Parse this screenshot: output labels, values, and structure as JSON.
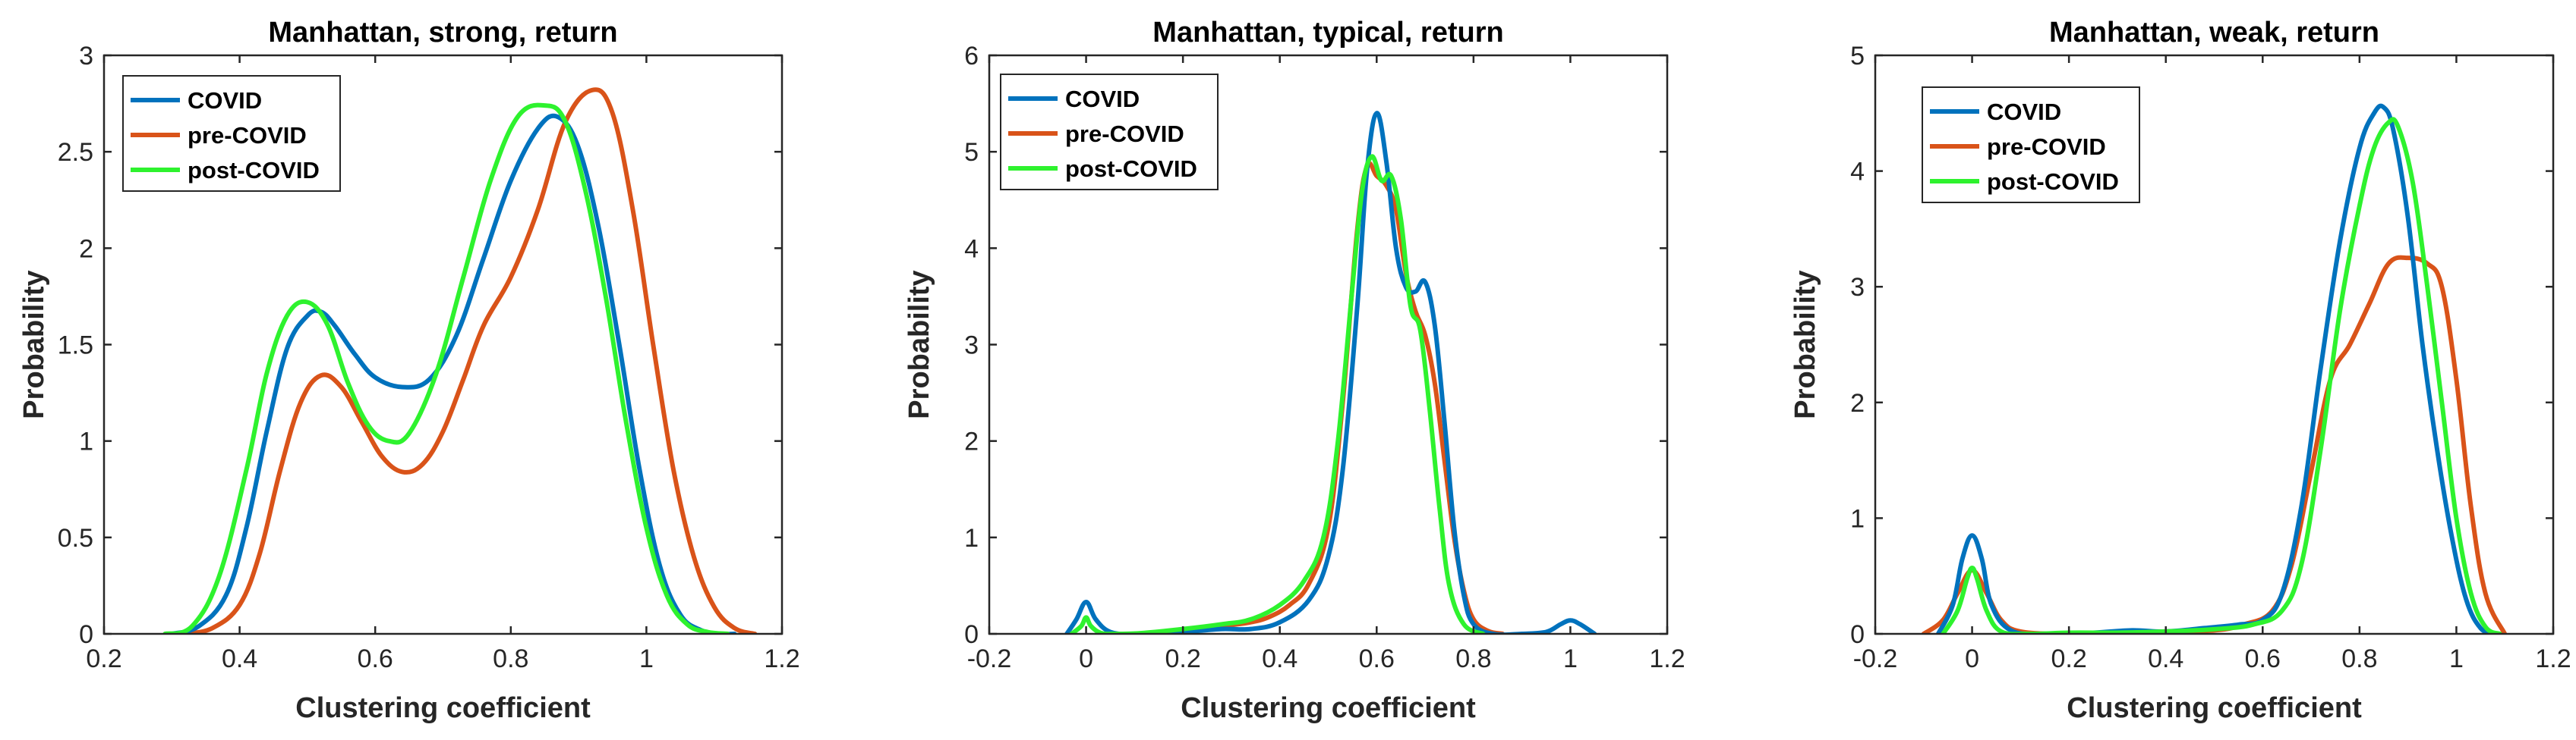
{
  "figure": {
    "series_colors": {
      "COVID": "#0072BD",
      "pre-COVID": "#D95319",
      "post-COVID": "#2EF22E"
    }
  },
  "chart_data": [
    {
      "type": "line",
      "title": "Manhattan, strong, return",
      "xlabel": "Clustering coefficient",
      "ylabel": "Probability",
      "xlim": [
        0.2,
        1.2
      ],
      "ylim": [
        0,
        3
      ],
      "xticks": [
        0.2,
        0.4,
        0.6,
        0.8,
        1,
        1.2
      ],
      "xtick_labels": [
        "0.2",
        "0.4",
        "0.6",
        "0.8",
        "1",
        "1.2"
      ],
      "yticks": [
        0,
        0.5,
        1,
        1.5,
        2,
        2.5,
        3
      ],
      "ytick_labels": [
        "0",
        "0.5",
        "1",
        "1.5",
        "2",
        "2.5",
        "3"
      ],
      "legend": [
        "COVID",
        "pre-COVID",
        "post-COVID"
      ],
      "series": [
        {
          "name": "COVID",
          "x": [
            0.3,
            0.34,
            0.38,
            0.41,
            0.44,
            0.47,
            0.5,
            0.52,
            0.54,
            0.57,
            0.6,
            0.64,
            0.68,
            0.72,
            0.76,
            0.8,
            0.84,
            0.87,
            0.9,
            0.93,
            0.96,
            0.99,
            1.02,
            1.05,
            1.08,
            1.11,
            1.13
          ],
          "y": [
            0,
            0.04,
            0.2,
            0.55,
            1.05,
            1.48,
            1.65,
            1.67,
            1.6,
            1.45,
            1.33,
            1.28,
            1.32,
            1.55,
            1.95,
            2.35,
            2.62,
            2.68,
            2.52,
            2.1,
            1.5,
            0.85,
            0.35,
            0.1,
            0.02,
            0,
            0
          ]
        },
        {
          "name": "pre-COVID",
          "x": [
            0.32,
            0.36,
            0.4,
            0.43,
            0.46,
            0.49,
            0.52,
            0.55,
            0.58,
            0.61,
            0.64,
            0.67,
            0.7,
            0.73,
            0.76,
            0.8,
            0.84,
            0.88,
            0.92,
            0.95,
            0.98,
            1.01,
            1.04,
            1.07,
            1.1,
            1.13,
            1.16
          ],
          "y": [
            0,
            0.03,
            0.15,
            0.42,
            0.85,
            1.2,
            1.34,
            1.28,
            1.1,
            0.92,
            0.84,
            0.88,
            1.05,
            1.32,
            1.6,
            1.85,
            2.2,
            2.65,
            2.82,
            2.7,
            2.2,
            1.5,
            0.85,
            0.4,
            0.14,
            0.03,
            0
          ]
        },
        {
          "name": "post-COVID",
          "x": [
            0.29,
            0.33,
            0.37,
            0.41,
            0.44,
            0.47,
            0.5,
            0.53,
            0.56,
            0.59,
            0.62,
            0.65,
            0.69,
            0.73,
            0.77,
            0.81,
            0.85,
            0.88,
            0.91,
            0.94,
            0.97,
            1.0,
            1.03,
            1.06,
            1.09,
            1.12
          ],
          "y": [
            0,
            0.04,
            0.3,
            0.85,
            1.35,
            1.65,
            1.72,
            1.6,
            1.3,
            1.08,
            1.0,
            1.04,
            1.35,
            1.85,
            2.35,
            2.68,
            2.74,
            2.66,
            2.3,
            1.75,
            1.1,
            0.55,
            0.2,
            0.05,
            0.01,
            0
          ]
        }
      ]
    },
    {
      "type": "line",
      "title": "Manhattan, typical, return",
      "xlabel": "Clustering coefficient",
      "ylabel": "Probability",
      "xlim": [
        -0.2,
        1.2
      ],
      "ylim": [
        0,
        6
      ],
      "xticks": [
        -0.2,
        0,
        0.2,
        0.4,
        0.6,
        0.8,
        1,
        1.2
      ],
      "xtick_labels": [
        "-0.2",
        "0",
        "0.2",
        "0.4",
        "0.6",
        "0.8",
        "1",
        "1.2"
      ],
      "yticks": [
        0,
        1,
        2,
        3,
        4,
        5,
        6
      ],
      "ytick_labels": [
        "0",
        "1",
        "2",
        "3",
        "4",
        "5",
        "6"
      ],
      "legend": [
        "COVID",
        "pre-COVID",
        "post-COVID"
      ],
      "series": [
        {
          "name": "COVID",
          "x": [
            -0.04,
            -0.02,
            0,
            0.02,
            0.05,
            0.1,
            0.2,
            0.28,
            0.34,
            0.4,
            0.46,
            0.5,
            0.53,
            0.56,
            0.58,
            0.6,
            0.62,
            0.64,
            0.66,
            0.68,
            0.7,
            0.72,
            0.74,
            0.76,
            0.78,
            0.8,
            0.84,
            0.9,
            0.95,
            0.98,
            1.0,
            1.02,
            1.05
          ],
          "y": [
            0,
            0.15,
            0.33,
            0.15,
            0.02,
            0,
            0.02,
            0.05,
            0.05,
            0.12,
            0.35,
            0.8,
            1.7,
            3.4,
            4.8,
            5.4,
            4.9,
            4.0,
            3.6,
            3.55,
            3.65,
            3.2,
            2.2,
            1.1,
            0.4,
            0.1,
            0,
            0,
            0.02,
            0.1,
            0.14,
            0.1,
            0
          ]
        },
        {
          "name": "pre-COVID",
          "x": [
            0.1,
            0.16,
            0.22,
            0.28,
            0.34,
            0.38,
            0.42,
            0.46,
            0.5,
            0.53,
            0.56,
            0.58,
            0.6,
            0.62,
            0.64,
            0.66,
            0.68,
            0.7,
            0.72,
            0.74,
            0.76,
            0.78,
            0.8,
            0.83,
            0.86
          ],
          "y": [
            0,
            0.02,
            0.05,
            0.08,
            0.12,
            0.18,
            0.3,
            0.52,
            1.1,
            2.4,
            4.2,
            4.85,
            4.75,
            4.65,
            4.4,
            3.75,
            3.35,
            3.1,
            2.6,
            1.8,
            1.0,
            0.45,
            0.15,
            0.03,
            0
          ]
        },
        {
          "name": "post-COVID",
          "x": [
            -0.03,
            -0.01,
            0,
            0.01,
            0.03,
            0.06,
            0.12,
            0.2,
            0.28,
            0.34,
            0.4,
            0.45,
            0.49,
            0.52,
            0.55,
            0.57,
            0.59,
            0.61,
            0.63,
            0.65,
            0.67,
            0.69,
            0.71,
            0.73,
            0.75,
            0.78,
            0.82
          ],
          "y": [
            0,
            0.08,
            0.17,
            0.08,
            0.01,
            0,
            0.01,
            0.05,
            0.1,
            0.15,
            0.3,
            0.55,
            1.0,
            2.0,
            3.6,
            4.6,
            4.95,
            4.7,
            4.75,
            4.3,
            3.4,
            3.15,
            2.3,
            1.3,
            0.5,
            0.1,
            0
          ]
        }
      ]
    },
    {
      "type": "line",
      "title": "Manhattan, weak, return",
      "xlabel": "Clustering coefficient",
      "ylabel": "Probability",
      "xlim": [
        -0.2,
        1.2
      ],
      "ylim": [
        0,
        5
      ],
      "xticks": [
        -0.2,
        0,
        0.2,
        0.4,
        0.6,
        0.8,
        1,
        1.2
      ],
      "xtick_labels": [
        "-0.2",
        "0",
        "0.2",
        "0.4",
        "0.6",
        "0.8",
        "1",
        "1.2"
      ],
      "yticks": [
        0,
        1,
        2,
        3,
        4,
        5
      ],
      "ytick_labels": [
        "0",
        "1",
        "2",
        "3",
        "4",
        "5"
      ],
      "legend": [
        "COVID",
        "pre-COVID",
        "post-COVID"
      ],
      "series": [
        {
          "name": "COVID",
          "x": [
            -0.07,
            -0.04,
            -0.02,
            0,
            0.02,
            0.04,
            0.08,
            0.15,
            0.25,
            0.33,
            0.4,
            0.48,
            0.55,
            0.6,
            0.64,
            0.68,
            0.72,
            0.76,
            0.8,
            0.83,
            0.85,
            0.87,
            0.9,
            0.93,
            0.96,
            0.99,
            1.02,
            1.05,
            1.08
          ],
          "y": [
            0,
            0.25,
            0.65,
            0.85,
            0.65,
            0.25,
            0.03,
            0,
            0.01,
            0.03,
            0.02,
            0.05,
            0.08,
            0.12,
            0.35,
            1.1,
            2.3,
            3.4,
            4.2,
            4.5,
            4.55,
            4.35,
            3.6,
            2.5,
            1.6,
            0.85,
            0.3,
            0.05,
            0
          ]
        },
        {
          "name": "pre-COVID",
          "x": [
            -0.1,
            -0.06,
            -0.03,
            0,
            0.03,
            0.06,
            0.1,
            0.2,
            0.3,
            0.4,
            0.5,
            0.56,
            0.62,
            0.66,
            0.7,
            0.74,
            0.78,
            0.82,
            0.86,
            0.9,
            0.94,
            0.97,
            1.0,
            1.03,
            1.06,
            1.1
          ],
          "y": [
            0,
            0.12,
            0.35,
            0.55,
            0.35,
            0.12,
            0.02,
            0,
            0.01,
            0.02,
            0.03,
            0.08,
            0.2,
            0.6,
            1.4,
            2.2,
            2.5,
            2.85,
            3.2,
            3.25,
            3.2,
            3.0,
            2.2,
            1.1,
            0.35,
            0
          ]
        },
        {
          "name": "post-COVID",
          "x": [
            -0.06,
            -0.03,
            -0.01,
            0,
            0.01,
            0.03,
            0.06,
            0.12,
            0.2,
            0.3,
            0.4,
            0.5,
            0.58,
            0.64,
            0.68,
            0.72,
            0.76,
            0.8,
            0.83,
            0.86,
            0.88,
            0.91,
            0.94,
            0.97,
            1.0,
            1.03,
            1.06,
            1.09
          ],
          "y": [
            0,
            0.2,
            0.48,
            0.57,
            0.48,
            0.2,
            0.02,
            0,
            0.01,
            0.01,
            0.02,
            0.04,
            0.08,
            0.2,
            0.6,
            1.6,
            2.8,
            3.7,
            4.2,
            4.42,
            4.38,
            3.9,
            3.0,
            2.0,
            1.0,
            0.35,
            0.06,
            0
          ]
        }
      ]
    }
  ]
}
